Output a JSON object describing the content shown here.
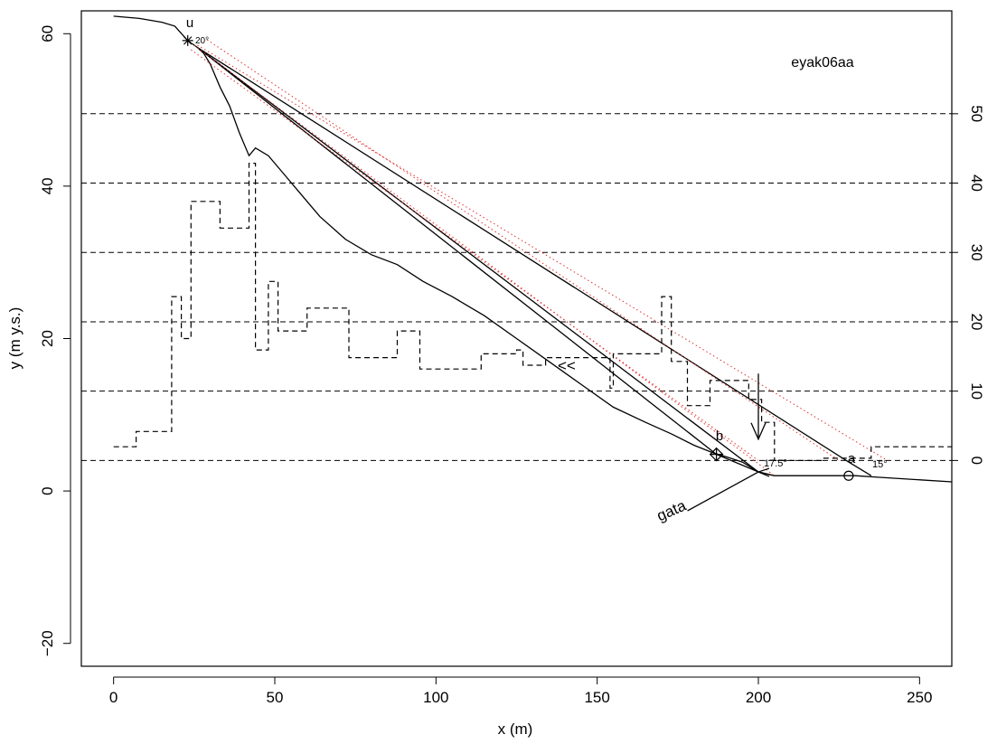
{
  "chart_data": {
    "type": "line",
    "title": "eyak06aa",
    "xlabel": "x (m)",
    "ylabel": "y (m y.s.)",
    "xlim": [
      -10,
      260
    ],
    "ylim": [
      -23,
      63
    ],
    "xticks": [
      0,
      50,
      100,
      150,
      200,
      250
    ],
    "yticks": [
      -20,
      0,
      20,
      40,
      60
    ],
    "right_axis": {
      "ticks": [
        0,
        10,
        20,
        30,
        40,
        50
      ],
      "zero_at_y": 4,
      "scale": 0.91
    },
    "grid": "horizontal dashed at right-axis ticks",
    "series": [
      {
        "style": "solid",
        "points": [
          [
            0,
            62.3
          ],
          [
            8,
            62
          ],
          [
            15,
            61.5
          ],
          [
            19,
            61
          ],
          [
            23,
            59.1
          ],
          [
            26,
            58.2
          ],
          [
            28,
            57.4
          ],
          [
            30,
            56
          ],
          [
            33,
            53
          ],
          [
            36,
            50.5
          ],
          [
            39,
            47
          ],
          [
            42,
            44
          ],
          [
            44,
            45
          ],
          [
            48,
            44
          ],
          [
            52,
            42
          ],
          [
            58,
            39
          ],
          [
            64,
            36
          ],
          [
            72,
            33
          ],
          [
            80,
            31
          ],
          [
            88,
            29.7
          ],
          [
            96,
            27.5
          ],
          [
            105,
            25.5
          ],
          [
            115,
            23
          ],
          [
            125,
            20
          ],
          [
            135,
            17
          ],
          [
            145,
            14
          ],
          [
            155,
            11
          ],
          [
            165,
            9
          ],
          [
            173,
            7.5
          ],
          [
            180,
            6
          ],
          [
            186,
            5
          ],
          [
            190,
            4.5
          ],
          [
            195,
            3.8
          ],
          [
            200,
            2.5
          ],
          [
            205,
            2
          ],
          [
            230,
            2
          ],
          [
            237,
            1.8
          ],
          [
            260,
            1.2
          ]
        ]
      },
      {
        "style": "solid",
        "points": [
          [
            26,
            58.2
          ],
          [
            200,
            2.5
          ],
          [
            205,
            2
          ]
        ]
      },
      {
        "style": "solid",
        "points": [
          [
            26,
            58.2
          ],
          [
            187,
            4.8
          ],
          [
            200,
            2.5
          ]
        ]
      },
      {
        "style": "solid",
        "points": [
          [
            26,
            58.2
          ],
          [
            228,
            3.8
          ],
          [
            235,
            2
          ]
        ]
      },
      {
        "style": "dotted-red",
        "points": [
          [
            23,
            59.1
          ],
          [
            205,
            2
          ]
        ]
      },
      {
        "style": "dotted-red",
        "points": [
          [
            29,
            59.2
          ],
          [
            225,
            4
          ]
        ]
      },
      {
        "style": "dotted-red",
        "points": [
          [
            26,
            58.5
          ],
          [
            240,
            4
          ]
        ]
      },
      {
        "style": "dotted-red",
        "points": [
          [
            24,
            57.9
          ],
          [
            200,
            4
          ]
        ]
      },
      {
        "style": "dashed-step",
        "points": [
          [
            0,
            5.8
          ],
          [
            7,
            5.8
          ],
          [
            7,
            7.8
          ],
          [
            18,
            7.8
          ],
          [
            18,
            25.5
          ],
          [
            21,
            25.5
          ],
          [
            21,
            20
          ],
          [
            24,
            20
          ],
          [
            24,
            38
          ],
          [
            33,
            38
          ],
          [
            33,
            34.5
          ],
          [
            42,
            34.5
          ],
          [
            42,
            43
          ],
          [
            44,
            43
          ],
          [
            44,
            18.5
          ],
          [
            48,
            18.5
          ],
          [
            48,
            27.5
          ],
          [
            51,
            27.5
          ],
          [
            51,
            21
          ],
          [
            60,
            21
          ],
          [
            60,
            24
          ],
          [
            73,
            24
          ],
          [
            73,
            17.5
          ],
          [
            88,
            17.5
          ],
          [
            88,
            21
          ],
          [
            95,
            21
          ],
          [
            95,
            16
          ],
          [
            114,
            16
          ],
          [
            114,
            18
          ],
          [
            125,
            18
          ],
          [
            125,
            18.5
          ],
          [
            127,
            18.5
          ],
          [
            127,
            16.5
          ],
          [
            134,
            16.5
          ],
          [
            134,
            17.5
          ],
          [
            154,
            17.5
          ],
          [
            154,
            13.5
          ],
          [
            155,
            13.5
          ],
          [
            155,
            18
          ],
          [
            170,
            18
          ],
          [
            170,
            25.5
          ],
          [
            173,
            25.5
          ],
          [
            173,
            17
          ],
          [
            178,
            17
          ],
          [
            178,
            11.2
          ],
          [
            185,
            11.2
          ],
          [
            185,
            14.5
          ],
          [
            197,
            14.5
          ],
          [
            197,
            12
          ],
          [
            201,
            12
          ],
          [
            201,
            9
          ],
          [
            205,
            9
          ],
          [
            205,
            4
          ],
          [
            220,
            4
          ],
          [
            220,
            4.3
          ],
          [
            235,
            4.3
          ],
          [
            235,
            5.8
          ],
          [
            260,
            5.8
          ]
        ]
      }
    ],
    "point_labels": [
      {
        "text": "u",
        "x": 23,
        "y": 59.1
      },
      {
        "text": "b",
        "x": 187,
        "y": 4.8
      },
      {
        "text": "a",
        "x": 228,
        "y": 2
      }
    ],
    "annotations": {
      "angle_left": "20°",
      "angle_mid": "17.5°",
      "angle_right": "15°",
      "angle_cluster": "20°",
      "arrow_label": "<<",
      "gata": "gata"
    }
  }
}
